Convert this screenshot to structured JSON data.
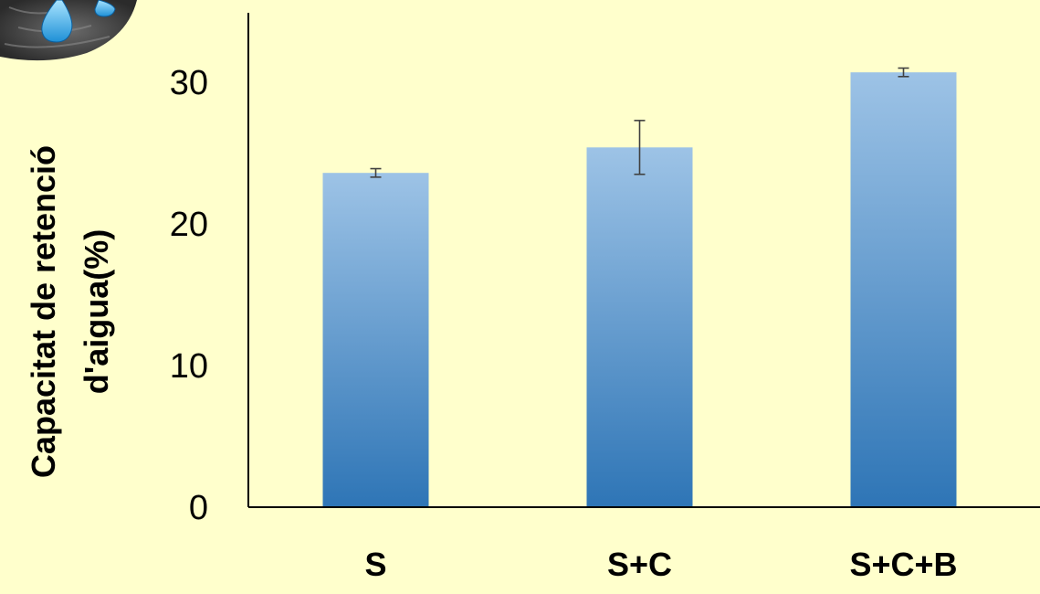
{
  "chart_data": {
    "type": "bar",
    "categories": [
      "S",
      "S+C",
      "S+C+B"
    ],
    "values": [
      23.6,
      25.4,
      30.7
    ],
    "error_bars": [
      0.3,
      1.9,
      0.3
    ],
    "ylabel_line1": "Capacitat de retenció",
    "ylabel_line2": "d'aigua(%)",
    "ylim": [
      0,
      35
    ],
    "yticks": [
      "0",
      "10",
      "20",
      "30"
    ],
    "grid": false,
    "legend": "none"
  },
  "colors": {
    "background": "#ffffcc",
    "bar_top": "#9dc3e6",
    "bar_bottom": "#2e75b6",
    "axis": "#000000",
    "error_bar": "#404040"
  },
  "decoration": {
    "icon": "water-drops-on-soil-icon"
  }
}
